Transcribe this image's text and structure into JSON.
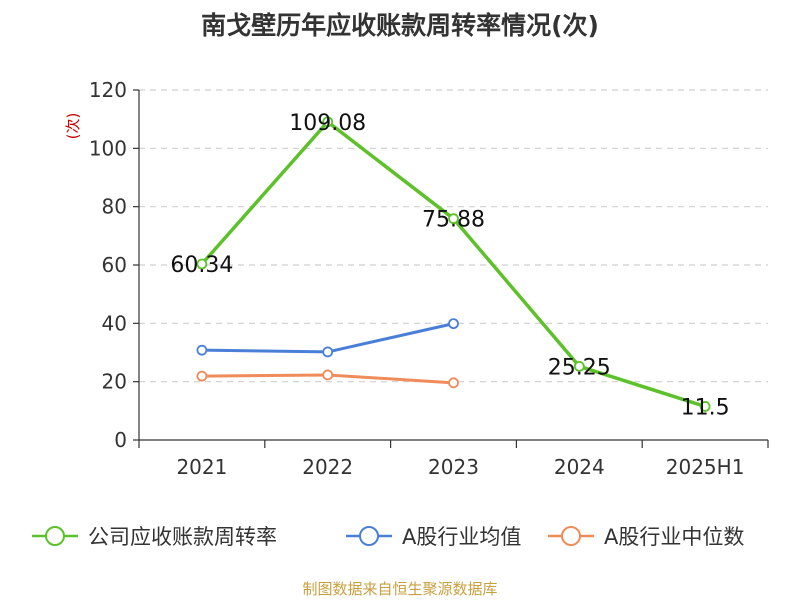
{
  "chart_data": {
    "type": "line",
    "title": "南戈壁历年应收账款周转率情况(次)",
    "ylabel": "(次)",
    "categories": [
      "2021",
      "2022",
      "2023",
      "2024",
      "2025H1"
    ],
    "yticks": [
      "0",
      "20",
      "40",
      "60",
      "80",
      "100",
      "120"
    ],
    "ylim": [
      0,
      120
    ],
    "grid": "horizontal dashed",
    "legend_position": "bottom",
    "series": [
      {
        "name": "公司应收账款周转率",
        "color": "#5dc12a",
        "values": [
          60.34,
          109.08,
          75.88,
          25.25,
          11.5
        ],
        "labels": [
          "60.34",
          "109.08",
          "75.88",
          "25.25",
          "11.5"
        ]
      },
      {
        "name": "A股行业均值",
        "color": "#4a7fd8",
        "values": [
          30.8,
          30.2,
          39.9,
          null,
          null
        ]
      },
      {
        "name": "A股行业中位数",
        "color": "#f08b5a",
        "values": [
          21.9,
          22.3,
          19.6,
          null,
          null
        ]
      }
    ]
  },
  "footer": {
    "source": "制图数据来自恒生聚源数据库"
  }
}
